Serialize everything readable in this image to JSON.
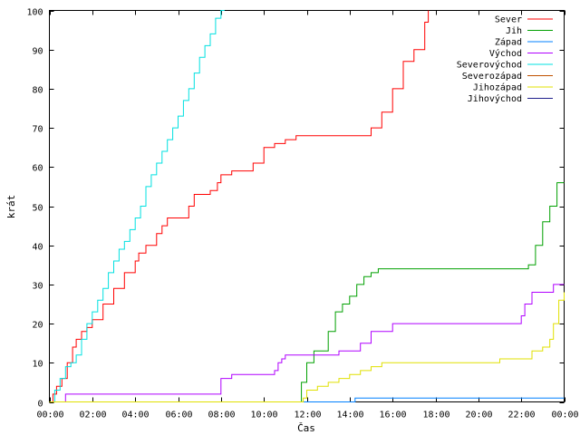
{
  "chart_data": {
    "type": "line",
    "title": "",
    "xlabel": "Čas",
    "ylabel": "krát",
    "xlim": [
      "00:00",
      "24:00"
    ],
    "ylim": [
      0,
      100
    ],
    "xticks": [
      "00:00",
      "02:00",
      "04:00",
      "06:00",
      "08:00",
      "10:00",
      "12:00",
      "14:00",
      "16:00",
      "18:00",
      "20:00",
      "22:00",
      "00:00"
    ],
    "yticks": [
      0,
      10,
      20,
      30,
      40,
      50,
      60,
      70,
      80,
      90,
      100
    ],
    "grid": false,
    "legend_position": "top-right",
    "series": [
      {
        "name": "Sever",
        "color": "#ff0000",
        "x": [
          "00:00",
          "00:10",
          "00:20",
          "00:35",
          "00:50",
          "01:05",
          "01:15",
          "01:30",
          "01:45",
          "02:00",
          "02:30",
          "03:00",
          "03:30",
          "04:00",
          "04:10",
          "04:30",
          "04:45",
          "05:00",
          "05:15",
          "05:30",
          "06:00",
          "06:30",
          "06:45",
          "07:10",
          "07:20",
          "07:30",
          "07:50",
          "08:00",
          "08:15",
          "08:30",
          "09:00",
          "09:30",
          "10:00",
          "10:30",
          "11:00",
          "11:30",
          "12:00",
          "13:00",
          "14:00",
          "14:40",
          "15:00",
          "15:30",
          "16:00",
          "16:30",
          "17:00",
          "17:30",
          "17:40"
        ],
        "y": [
          0,
          2,
          4,
          6,
          10,
          14,
          16,
          18,
          19,
          21,
          25,
          29,
          33,
          36,
          38,
          40,
          40,
          43,
          45,
          47,
          47,
          50,
          53,
          53,
          53,
          54,
          56,
          58,
          58,
          59,
          59,
          61,
          65,
          66,
          67,
          68,
          68,
          68,
          68,
          68,
          70,
          74,
          80,
          87,
          90,
          97,
          100
        ]
      },
      {
        "name": "Jih",
        "color": "#00a000",
        "x": [
          "00:00",
          "11:30",
          "11:45",
          "12:00",
          "12:20",
          "12:40",
          "13:00",
          "13:20",
          "13:40",
          "14:00",
          "14:20",
          "14:40",
          "15:00",
          "15:20",
          "16:00",
          "18:00",
          "20:00",
          "21:00",
          "21:40",
          "22:00",
          "22:20",
          "22:40",
          "23:00",
          "23:20",
          "23:40",
          "24:00"
        ],
        "y": [
          0,
          0,
          5,
          10,
          13,
          13,
          18,
          23,
          25,
          27,
          30,
          32,
          33,
          34,
          34,
          34,
          34,
          34,
          34,
          34,
          35,
          40,
          46,
          50,
          56,
          56
        ]
      },
      {
        "name": "Západ",
        "color": "#0080ff",
        "x": [
          "00:00",
          "14:10",
          "14:15",
          "16:00",
          "20:00",
          "24:00"
        ],
        "y": [
          0,
          0,
          1,
          1,
          1,
          1
        ]
      },
      {
        "name": "Východ",
        "color": "#b000ff",
        "x": [
          "00:00",
          "00:40",
          "00:45",
          "02:00",
          "06:00",
          "07:55",
          "08:00",
          "08:30",
          "09:00",
          "10:30",
          "10:40",
          "10:50",
          "11:00",
          "12:00",
          "13:00",
          "13:30",
          "14:00",
          "14:30",
          "15:00",
          "16:00",
          "18:00",
          "21:40",
          "22:00",
          "22:10",
          "22:30",
          "23:00",
          "23:30",
          "24:00"
        ],
        "y": [
          0,
          0,
          2,
          2,
          2,
          2,
          6,
          7,
          7,
          8,
          10,
          11,
          12,
          12,
          12,
          13,
          13,
          15,
          18,
          20,
          20,
          20,
          22,
          25,
          28,
          28,
          30,
          30
        ]
      },
      {
        "name": "Severovýchod",
        "color": "#00e0e0",
        "x": [
          "00:00",
          "00:15",
          "00:30",
          "00:45",
          "01:00",
          "01:15",
          "01:30",
          "01:45",
          "02:00",
          "02:15",
          "02:30",
          "02:45",
          "03:00",
          "03:15",
          "03:30",
          "03:45",
          "04:00",
          "04:15",
          "04:30",
          "04:45",
          "05:00",
          "05:15",
          "05:30",
          "05:45",
          "06:00",
          "06:15",
          "06:30",
          "06:45",
          "07:00",
          "07:15",
          "07:30",
          "07:45",
          "08:00",
          "08:10"
        ],
        "y": [
          0,
          3,
          6,
          9,
          10,
          12,
          16,
          20,
          23,
          26,
          29,
          33,
          36,
          39,
          41,
          44,
          47,
          50,
          55,
          58,
          61,
          64,
          67,
          70,
          73,
          77,
          80,
          84,
          88,
          91,
          94,
          98,
          100,
          100
        ]
      },
      {
        "name": "Severozápad",
        "color": "#c05000",
        "x": [],
        "y": []
      },
      {
        "name": "Jihozápad",
        "color": "#e0e000",
        "x": [
          "00:00",
          "11:40",
          "11:50",
          "12:00",
          "12:30",
          "13:00",
          "13:30",
          "14:00",
          "14:30",
          "15:00",
          "15:30",
          "16:00",
          "18:00",
          "20:00",
          "21:00",
          "22:00",
          "22:30",
          "23:00",
          "23:20",
          "23:30",
          "23:45",
          "24:00"
        ],
        "y": [
          0,
          0,
          1,
          3,
          4,
          5,
          6,
          7,
          8,
          9,
          10,
          10,
          10,
          10,
          11,
          11,
          13,
          14,
          16,
          20,
          26,
          28
        ]
      },
      {
        "name": "Jihovýchod",
        "color": "#20208c",
        "x": [],
        "y": []
      }
    ]
  }
}
